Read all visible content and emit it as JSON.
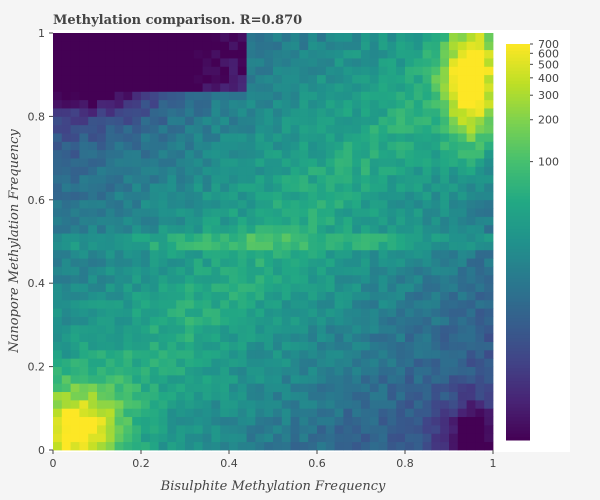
{
  "chart_data": {
    "type": "heatmap",
    "title": "Methylation comparison. R=0.870",
    "xlabel": "Bisulphite Methylation Frequency",
    "ylabel": "Nanopore Methylation Frequency",
    "xlim": [
      0,
      1
    ],
    "ylim": [
      0,
      1
    ],
    "x_ticks": [
      "0",
      "0.2",
      "0.4",
      "0.6",
      "0.8",
      "1"
    ],
    "y_ticks": [
      "0",
      "0.2",
      "0.4",
      "0.6",
      "0.8",
      "1"
    ],
    "bins": 50,
    "color_scale": "log",
    "colormap": "viridis",
    "colorbar": {
      "ticks": [
        100,
        200,
        300,
        400,
        500,
        600,
        700
      ],
      "tick_labels": [
        "100",
        "200",
        "300",
        "400",
        "500",
        "600",
        "700"
      ],
      "range": [
        1,
        700
      ]
    },
    "colors": {
      "background": "#f5f5f5",
      "plot_background": "#ffffff",
      "text": "#444444"
    }
  }
}
